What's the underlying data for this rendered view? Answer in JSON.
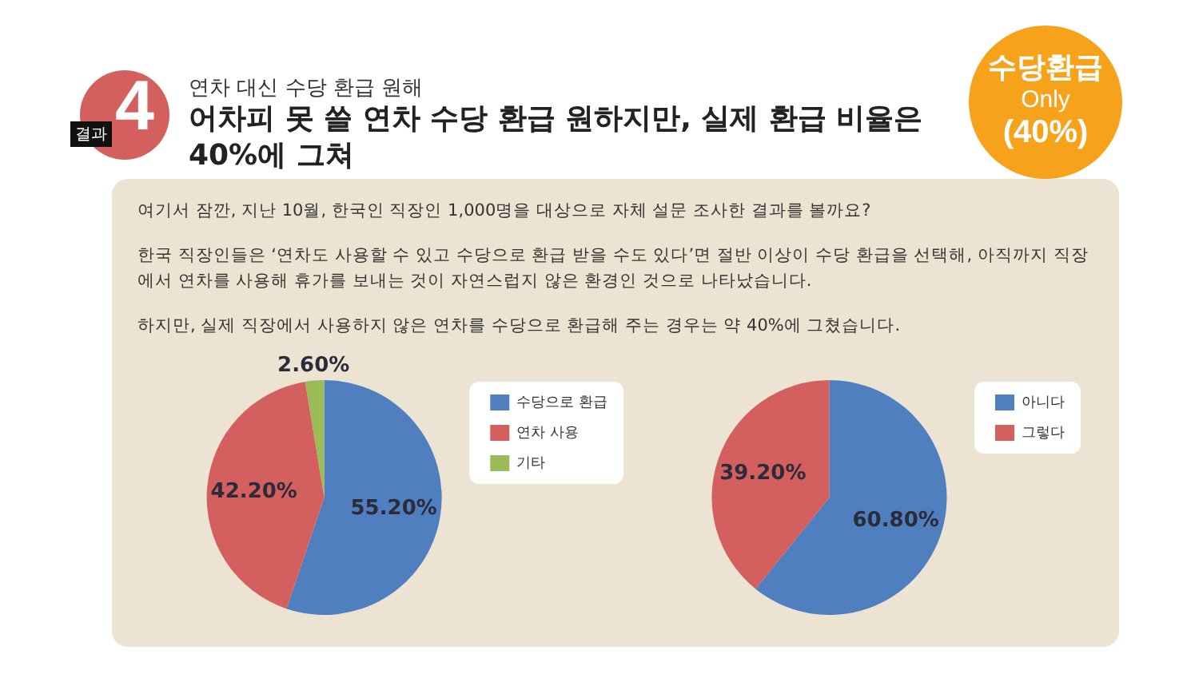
{
  "chart_data": [
    {
      "type": "pie",
      "subtitle": "연차 대신 수당 환급 원해",
      "title": "어차피 못 쓸 연차 수당 환급 원하지만, 실제 환급 비율은 40%에 그쳐",
      "annotations": [
        "결과",
        "4",
        "수당환급",
        "Only",
        "(40%)",
        "여기서 잠깐, 지난 10월, 한국인 직장인 1,000명을 대상으로 자체 설문 조사한 결과를 볼까요?",
        "한국 직장인들은 ‘연차도 사용할 수 있고 수당으로 환급 받을 수도 있다’면 절반 이상이 수당 환급을 선택해, 아직까지 직장에서 연차를 사용해 휴가를 보내는 것이 자연스럽지 않은 환경인 것으로 나타났습니다.",
        "하지만, 실제 직장에서 사용하지 않은 연차를 수당으로 환급해 주는 경우는 약 40%에 그쳤습니다."
      ],
      "categories": [
        "수당으로 환급",
        "연차 사용",
        "기타"
      ],
      "values": [
        55.2,
        42.2,
        2.6
      ],
      "value_labels": [
        "55.20%",
        "42.20%",
        "2.60%"
      ],
      "colors": [
        "#4f7fbf",
        "#d45f5f",
        "#9bbb59"
      ],
      "legend": "right"
    },
    {
      "type": "pie",
      "categories": [
        "아니다",
        "그렇다"
      ],
      "values": [
        60.8,
        39.2
      ],
      "value_labels": [
        "60.80%",
        "39.20%"
      ],
      "colors": [
        "#4f7fbf",
        "#d45f5f"
      ],
      "legend": "right"
    }
  ]
}
